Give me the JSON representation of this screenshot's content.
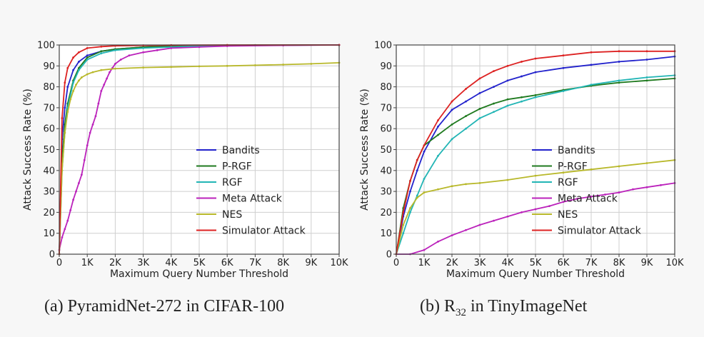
{
  "chart_data": [
    {
      "type": "line",
      "caption": "(a) PyramidNet-272 in CIFAR-100",
      "xlabel": "Maximum Query Number Threshold",
      "ylabel": "Attack Success Rate (%)",
      "xlim": [
        0,
        10000
      ],
      "ylim": [
        0,
        100
      ],
      "xticks": [
        0,
        1000,
        2000,
        3000,
        4000,
        5000,
        6000,
        7000,
        8000,
        9000,
        10000
      ],
      "xtick_labels": [
        "0",
        "1K",
        "2K",
        "3K",
        "4K",
        "5K",
        "6K",
        "7K",
        "8K",
        "9K",
        "10K"
      ],
      "yticks": [
        0,
        10,
        20,
        30,
        40,
        50,
        60,
        70,
        80,
        90,
        100
      ],
      "ytick_labels": [
        "0",
        "10",
        "20",
        "30",
        "40",
        "50",
        "60",
        "70",
        "80",
        "90",
        "100"
      ],
      "grid": true,
      "legend_position": "lower-right",
      "series": [
        {
          "name": "Bandits",
          "color": "#2222cc",
          "x": [
            0,
            100,
            200,
            300,
            500,
            700,
            1000,
            1500,
            2000,
            3000,
            4000,
            5000,
            7000,
            10000
          ],
          "y": [
            0,
            55,
            70,
            80,
            88,
            92,
            95,
            97,
            98,
            99,
            99.5,
            99.7,
            99.9,
            100
          ]
        },
        {
          "name": "P-RGF",
          "color": "#1f7a1f",
          "x": [
            0,
            100,
            200,
            300,
            500,
            700,
            1000,
            1500,
            2000,
            3000,
            4000,
            5000,
            7000,
            10000
          ],
          "y": [
            0,
            45,
            62,
            72,
            83,
            89,
            94,
            97,
            98,
            99,
            99.5,
            99.7,
            99.9,
            100
          ]
        },
        {
          "name": "RGF",
          "color": "#22b5b5",
          "x": [
            0,
            100,
            200,
            300,
            500,
            700,
            1000,
            1500,
            2000,
            3000,
            4000,
            5000,
            7000,
            10000
          ],
          "y": [
            0,
            40,
            58,
            70,
            82,
            88,
            93,
            96,
            97.5,
            98.5,
            99,
            99.5,
            99.8,
            100
          ]
        },
        {
          "name": "Meta Attack",
          "color": "#bb22bb",
          "x": [
            0,
            100,
            200,
            300,
            400,
            500,
            600,
            700,
            800,
            900,
            1000,
            1100,
            1200,
            1300,
            1400,
            1500,
            1600,
            1700,
            1800,
            1900,
            2000,
            2200,
            2500,
            3000,
            3500,
            4000,
            5000,
            6000,
            8000,
            10000
          ],
          "y": [
            2,
            8,
            12,
            16,
            21,
            26,
            30,
            34,
            38,
            45,
            52,
            58,
            62,
            66,
            72,
            78,
            81,
            84,
            87,
            89,
            91,
            93,
            95,
            96.5,
            97.5,
            98.5,
            99,
            99.5,
            99.8,
            100
          ]
        },
        {
          "name": "NES",
          "color": "#b8b82a",
          "x": [
            0,
            100,
            200,
            300,
            400,
            500,
            600,
            700,
            800,
            1000,
            1200,
            1500,
            2000,
            3000,
            4000,
            5000,
            6000,
            7000,
            8000,
            9000,
            10000
          ],
          "y": [
            0,
            40,
            58,
            68,
            74,
            78,
            81,
            83,
            84.5,
            86,
            87,
            88,
            88.7,
            89.2,
            89.5,
            89.8,
            90,
            90.3,
            90.6,
            91,
            91.5
          ]
        },
        {
          "name": "Simulator Attack",
          "color": "#dd2222",
          "x": [
            0,
            100,
            200,
            300,
            500,
            700,
            1000,
            1500,
            2000,
            3000,
            4000,
            6000,
            10000
          ],
          "y": [
            0,
            65,
            82,
            89,
            94,
            96.5,
            98.5,
            99.2,
            99.6,
            99.8,
            99.9,
            100,
            100
          ]
        }
      ]
    },
    {
      "type": "line",
      "caption": "(b) R32 in TinyImageNet",
      "caption_main": "(b) R",
      "caption_sub": "32",
      "caption_tail": " in TinyImageNet",
      "xlabel": "Maximum Query Number Threshold",
      "ylabel": "Attack Success Rate (%)",
      "xlim": [
        0,
        10000
      ],
      "ylim": [
        0,
        100
      ],
      "xticks": [
        0,
        1000,
        2000,
        3000,
        4000,
        5000,
        6000,
        7000,
        8000,
        9000,
        10000
      ],
      "xtick_labels": [
        "0",
        "1K",
        "2K",
        "3K",
        "4K",
        "5K",
        "6K",
        "7K",
        "8K",
        "9K",
        "10K"
      ],
      "yticks": [
        0,
        10,
        20,
        30,
        40,
        50,
        60,
        70,
        80,
        90,
        100
      ],
      "ytick_labels": [
        "0",
        "10",
        "20",
        "30",
        "40",
        "50",
        "60",
        "70",
        "80",
        "90",
        "100"
      ],
      "grid": true,
      "legend_position": "lower-right",
      "series": [
        {
          "name": "Bandits",
          "color": "#2222cc",
          "x": [
            0,
            250,
            500,
            750,
            1000,
            1500,
            2000,
            2500,
            3000,
            3500,
            4000,
            4500,
            5000,
            6000,
            7000,
            8000,
            9000,
            10000
          ],
          "y": [
            0,
            18,
            30,
            40,
            49,
            61,
            69,
            73,
            77,
            80,
            83,
            85,
            87,
            89,
            90.5,
            92,
            93,
            94.5
          ]
        },
        {
          "name": "P-RGF",
          "color": "#1f7a1f",
          "x": [
            0,
            250,
            500,
            750,
            1000,
            1500,
            2000,
            2500,
            3000,
            3500,
            4000,
            4500,
            5000,
            6000,
            7000,
            8000,
            9000,
            10000
          ],
          "y": [
            0,
            22,
            35,
            45,
            52,
            57,
            62,
            66,
            69.5,
            72,
            74,
            75,
            76,
            78.5,
            80.5,
            82,
            83,
            84
          ]
        },
        {
          "name": "RGF",
          "color": "#22b5b5",
          "x": [
            0,
            250,
            500,
            750,
            1000,
            1500,
            2000,
            2500,
            3000,
            3500,
            4000,
            4500,
            5000,
            6000,
            7000,
            8000,
            9000,
            10000
          ],
          "y": [
            0,
            10,
            20,
            28,
            36,
            47,
            55,
            60,
            65,
            68,
            71,
            73,
            75,
            78,
            81,
            83,
            84.5,
            85.5
          ]
        },
        {
          "name": "Meta Attack",
          "color": "#bb22bb",
          "x": [
            0,
            500,
            1000,
            1500,
            2000,
            2500,
            3000,
            3500,
            4000,
            4500,
            5000,
            5500,
            6000,
            6500,
            7000,
            7500,
            8000,
            8500,
            9000,
            9500,
            10000
          ],
          "y": [
            0,
            0,
            2,
            6,
            9,
            11.5,
            14,
            16,
            18,
            20,
            21.5,
            23,
            25,
            26.5,
            27.5,
            28.5,
            29.5,
            31,
            32,
            33,
            34
          ]
        },
        {
          "name": "NES",
          "color": "#b8b82a",
          "x": [
            0,
            250,
            500,
            750,
            1000,
            1500,
            2000,
            2500,
            3000,
            4000,
            5000,
            6000,
            7000,
            8000,
            9000,
            10000
          ],
          "y": [
            0,
            14,
            22,
            27,
            29.5,
            31,
            32.5,
            33.5,
            34,
            35.5,
            37.5,
            39,
            40.5,
            42,
            43.5,
            45
          ]
        },
        {
          "name": "Simulator Attack",
          "color": "#dd2222",
          "x": [
            0,
            250,
            500,
            750,
            1000,
            1500,
            2000,
            2500,
            3000,
            3500,
            4000,
            4500,
            5000,
            6000,
            7000,
            8000,
            9000,
            10000
          ],
          "y": [
            0,
            20,
            35,
            45,
            52,
            64,
            73,
            79,
            84,
            87.5,
            90,
            92,
            93.5,
            95,
            96.5,
            97,
            97,
            97
          ]
        }
      ]
    }
  ]
}
